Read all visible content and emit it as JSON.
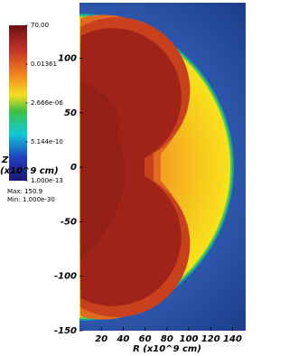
{
  "chart_data": {
    "type": "heatmap",
    "xlabel": "R (x10^9 cm)",
    "ylabel": [
      "Z",
      "(x10^9 cm)"
    ],
    "xlim": [
      0,
      152
    ],
    "xticks": [
      20,
      40,
      60,
      80,
      100,
      120,
      140
    ],
    "ylim": [
      -150,
      151
    ],
    "yticks": [
      -150,
      -100,
      -50,
      0,
      50,
      100
    ],
    "colorbar": {
      "scale": "log",
      "lim": [
        1e-13,
        70
      ],
      "ticks": [
        {
          "value": 70,
          "label": "70.00"
        },
        0.01361,
        {
          "value": 2.666e-06,
          "label": "2.666e-06"
        },
        {
          "value": 5.144e-10,
          "label": "5.144e-10"
        },
        {
          "value": 1e-13,
          "label": "1.000e-13"
        }
      ],
      "max": "Max: 150.9",
      "min": "Min: 1.000e-30"
    }
  }
}
